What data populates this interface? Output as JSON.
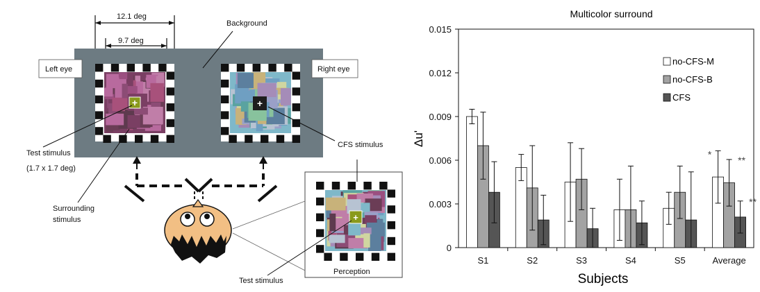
{
  "schematic": {
    "dim_outer": "12.1 deg",
    "dim_inner": "9.7 deg",
    "background_label": "Background",
    "left_eye_label": "Left eye",
    "right_eye_label": "Right eye",
    "test_stimulus_label": "Test stimulus",
    "test_stimulus_size": "(1.7 x 1.7 deg)",
    "surrounding_label_1": "Surrounding",
    "surrounding_label_2": "stimulus",
    "cfs_stimulus_label": "CFS stimulus",
    "perception_label": "Perception",
    "test_stimulus_bottom_label": "Test stimulus",
    "fixation_glyph": "+",
    "colors": {
      "background_panel": "#6d7b82",
      "test_patch": "#8a9a1c",
      "face": "#f2bf84"
    }
  },
  "chart_data": {
    "type": "bar",
    "title": "Multicolor surround",
    "xlabel": "Subjects",
    "ylabel": "Δu'",
    "ylim": [
      0,
      0.015
    ],
    "yticks": [
      "0",
      "0.003",
      "0.006",
      "0.009",
      "0.012",
      "0.015"
    ],
    "categories": [
      "S1",
      "S2",
      "S3",
      "S4",
      "S5",
      "Average"
    ],
    "legend_position": "top-right",
    "series": [
      {
        "name": "no-CFS-M",
        "color": "#ffffff",
        "values": [
          0.009,
          0.0055,
          0.0045,
          0.0026,
          0.0027,
          0.00485
        ],
        "errors": [
          0.0005,
          0.0009,
          0.0027,
          0.0021,
          0.0011,
          0.0018
        ]
      },
      {
        "name": "no-CFS-B",
        "color": "#a3a3a3",
        "values": [
          0.007,
          0.0041,
          0.0047,
          0.0026,
          0.0038,
          0.00445
        ],
        "errors": [
          0.0023,
          0.0029,
          0.0021,
          0.003,
          0.0018,
          0.0016
        ]
      },
      {
        "name": "CFS",
        "color": "#555555",
        "values": [
          0.0038,
          0.0019,
          0.0013,
          0.0017,
          0.0019,
          0.0021
        ],
        "errors": [
          0.0021,
          0.0017,
          0.0014,
          0.0015,
          0.0033,
          0.0011
        ]
      }
    ],
    "annotations": [
      {
        "category": "Average",
        "series": "no-CFS-M",
        "text": "*"
      },
      {
        "category": "Average",
        "series": "no-CFS-B",
        "text": "**"
      },
      {
        "category": "Average",
        "series": "CFS",
        "text": "**"
      }
    ]
  }
}
